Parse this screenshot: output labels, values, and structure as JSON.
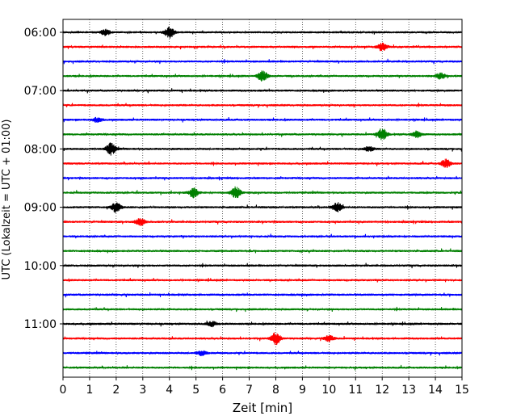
{
  "chart_data": {
    "type": "line",
    "title": "",
    "xlabel": "Zeit  [min]",
    "ylabel": "UTC (Lokalzeit = UTC + 01:00)",
    "xlim": [
      0,
      15
    ],
    "x_ticks": [
      "0",
      "1",
      "2",
      "3",
      "4",
      "5",
      "6",
      "7",
      "8",
      "9",
      "10",
      "11",
      "12",
      "13",
      "14",
      "15"
    ],
    "y_ticks": [
      "06:00",
      "07:00",
      "08:00",
      "09:00",
      "10:00",
      "11:00"
    ],
    "grid": "vertical dotted",
    "trace_colors": [
      "#000000",
      "#ff0000",
      "#0000ff",
      "#008000"
    ],
    "trace_start_times": [
      "06:00",
      "06:15",
      "06:30",
      "06:45",
      "07:00",
      "07:15",
      "07:30",
      "07:45",
      "08:00",
      "08:15",
      "08:30",
      "08:45",
      "09:00",
      "09:15",
      "09:30",
      "09:45",
      "10:00",
      "10:15",
      "10:30",
      "10:45",
      "11:00",
      "11:15",
      "11:30",
      "11:45"
    ],
    "events": [
      {
        "trace": 0,
        "t": 1.6,
        "amp": 0.5
      },
      {
        "trace": 0,
        "t": 4.0,
        "amp": 1.0
      },
      {
        "trace": 1,
        "t": 12.0,
        "amp": 0.7
      },
      {
        "trace": 3,
        "t": 7.5,
        "amp": 0.9
      },
      {
        "trace": 3,
        "t": 14.2,
        "amp": 0.5
      },
      {
        "trace": 6,
        "t": 1.3,
        "amp": 0.4
      },
      {
        "trace": 7,
        "t": 12.0,
        "amp": 1.0
      },
      {
        "trace": 7,
        "t": 13.3,
        "amp": 0.6
      },
      {
        "trace": 8,
        "t": 1.8,
        "amp": 1.0
      },
      {
        "trace": 8,
        "t": 11.5,
        "amp": 0.4
      },
      {
        "trace": 9,
        "t": 14.4,
        "amp": 0.7
      },
      {
        "trace": 11,
        "t": 4.9,
        "amp": 0.8
      },
      {
        "trace": 11,
        "t": 6.5,
        "amp": 1.0
      },
      {
        "trace": 12,
        "t": 2.0,
        "amp": 0.8
      },
      {
        "trace": 12,
        "t": 10.3,
        "amp": 0.8
      },
      {
        "trace": 13,
        "t": 2.9,
        "amp": 0.6
      },
      {
        "trace": 20,
        "t": 5.6,
        "amp": 0.4
      },
      {
        "trace": 21,
        "t": 8.0,
        "amp": 1.0
      },
      {
        "trace": 21,
        "t": 10.0,
        "amp": 0.5
      },
      {
        "trace": 22,
        "t": 5.2,
        "amp": 0.4
      }
    ]
  }
}
